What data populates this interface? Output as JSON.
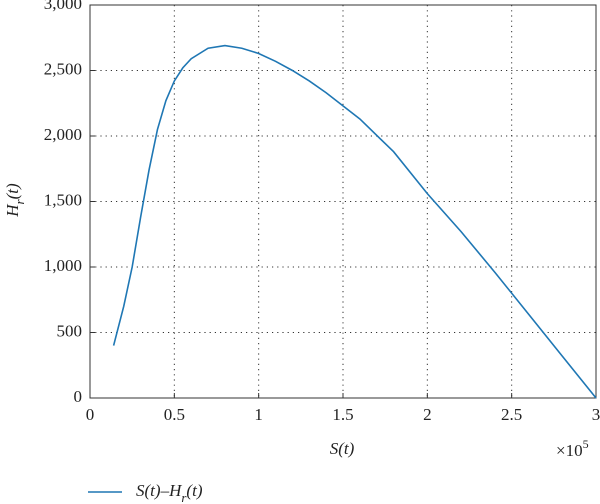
{
  "chart_data": {
    "type": "line",
    "xlabel": "S(t)",
    "ylabel": "Hr(t)",
    "x_multiplier": "×10",
    "x_exponent": "5",
    "x": [
      0.14,
      0.2,
      0.25,
      0.3,
      0.35,
      0.4,
      0.45,
      0.5,
      0.55,
      0.6,
      0.7,
      0.8,
      0.9,
      1.0,
      1.1,
      1.2,
      1.3,
      1.4,
      1.5,
      1.6,
      1.8,
      2.0,
      2.2,
      2.4,
      2.6,
      2.8,
      3.0
    ],
    "series": [
      {
        "name": "S(t)–Hr(t)",
        "color": "#1f77b4",
        "values": [
          400,
          700,
          1000,
          1380,
          1740,
          2050,
          2270,
          2420,
          2520,
          2590,
          2670,
          2690,
          2670,
          2630,
          2570,
          2500,
          2420,
          2330,
          2230,
          2130,
          1880,
          1560,
          1270,
          960,
          640,
          320,
          0
        ]
      }
    ],
    "xlim": [
      0,
      3
    ],
    "xticks": [
      0,
      0.5,
      1,
      1.5,
      2,
      2.5,
      3
    ],
    "ylim": [
      0,
      3000
    ],
    "yticks": [
      0,
      500,
      {
        "value": 1000,
        "label": "1,000"
      },
      {
        "value": 1500,
        "label": "1,500"
      },
      {
        "value": 2000,
        "label": "2,000"
      },
      {
        "value": 2500,
        "label": "2,500"
      },
      {
        "value": 3000,
        "label": "3,000"
      }
    ],
    "grid": true,
    "legend": "bottom"
  }
}
